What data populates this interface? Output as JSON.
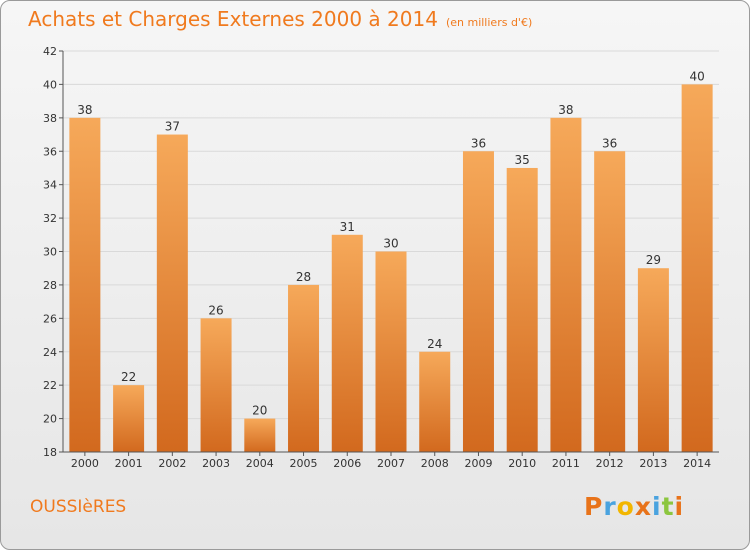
{
  "title": "Achats et Charges Externes 2000 à 2014",
  "subtitle": "(en milliers d'€)",
  "location": "OUSSIèRES",
  "logo": {
    "letters": [
      "P",
      "r",
      "o",
      "x",
      "i",
      "t",
      "i"
    ],
    "colors": [
      "#e8731a",
      "#4aa3df",
      "#f2b600",
      "#e8731a",
      "#4aa3df",
      "#8cc63f",
      "#e8731a"
    ]
  },
  "chart_data": {
    "type": "bar",
    "categories": [
      "2000",
      "2001",
      "2002",
      "2003",
      "2004",
      "2005",
      "2006",
      "2007",
      "2008",
      "2009",
      "2010",
      "2011",
      "2012",
      "2013",
      "2014"
    ],
    "values": [
      38,
      22,
      37,
      26,
      20,
      28,
      31,
      30,
      24,
      36,
      35,
      38,
      36,
      29,
      40
    ],
    "ylim": [
      18,
      42
    ],
    "yticks": [
      18,
      20,
      22,
      24,
      26,
      28,
      30,
      32,
      34,
      36,
      38,
      40,
      42
    ],
    "grid": true,
    "bar_colors": {
      "top": "#f6a95a",
      "bottom": "#d2691e"
    }
  }
}
